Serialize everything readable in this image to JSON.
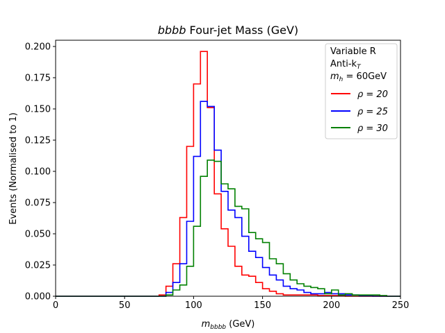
{
  "chart_data": {
    "type": "line",
    "title_prefix": "bbbb",
    "title_rest": " Four-jet Mass (GeV)",
    "xlabel_main": "m",
    "xlabel_sub": "bbbb",
    "xlabel_unit": " (GeV)",
    "ylabel": "Events (Normalised to 1)",
    "xlim": [
      0,
      250
    ],
    "ylim": [
      0,
      0.205
    ],
    "x_ticks": [
      0,
      50,
      100,
      150,
      200,
      250
    ],
    "x_tick_labels": [
      "0",
      "50",
      "100",
      "150",
      "200",
      "250"
    ],
    "y_ticks": [
      0.0,
      0.025,
      0.05,
      0.075,
      0.1,
      0.125,
      0.15,
      0.175,
      0.2
    ],
    "y_tick_labels": [
      "0.000",
      "0.025",
      "0.050",
      "0.075",
      "0.100",
      "0.125",
      "0.150",
      "0.175",
      "0.200"
    ],
    "grid": false,
    "legend_position": "top-right",
    "legend_header": {
      "line1": "Variable R",
      "line2_main": "Anti-k",
      "line2_sub": "T",
      "line3_main": "m",
      "line3_sub": "h",
      "line3_rest": " = 60GeV"
    },
    "bin_edges": [
      0,
      5,
      10,
      15,
      20,
      25,
      30,
      35,
      40,
      45,
      50,
      55,
      60,
      65,
      70,
      75,
      80,
      85,
      90,
      95,
      100,
      105,
      110,
      115,
      120,
      125,
      130,
      135,
      140,
      145,
      150,
      155,
      160,
      165,
      170,
      175,
      180,
      185,
      190,
      195,
      200,
      205,
      210,
      215,
      220,
      225,
      230,
      235,
      240,
      245,
      250
    ],
    "series": [
      {
        "name": "ρ = 20",
        "color": "#ff0000",
        "values": [
          0,
          0,
          0,
          0,
          0,
          0,
          0,
          0,
          0,
          0,
          0,
          0,
          0,
          0,
          0,
          0.001,
          0.008,
          0.026,
          0.063,
          0.12,
          0.17,
          0.196,
          0.151,
          0.082,
          0.054,
          0.04,
          0.024,
          0.017,
          0.016,
          0.011,
          0.006,
          0.004,
          0.002,
          0.001,
          0.001,
          0.001,
          0.001,
          0.001,
          0.0005,
          0.0005,
          0.0005,
          0.0005,
          0,
          0,
          0,
          0,
          0,
          0,
          0,
          0
        ]
      },
      {
        "name": "ρ = 25",
        "color": "#0000ff",
        "values": [
          0,
          0,
          0,
          0,
          0,
          0,
          0,
          0,
          0,
          0,
          0,
          0,
          0,
          0,
          0,
          0,
          0.003,
          0.011,
          0.026,
          0.06,
          0.112,
          0.156,
          0.152,
          0.117,
          0.084,
          0.069,
          0.063,
          0.048,
          0.036,
          0.031,
          0.023,
          0.017,
          0.013,
          0.008,
          0.006,
          0.005,
          0.003,
          0.002,
          0.002,
          0.003,
          0.002,
          0.002,
          0.001,
          0.001,
          0.0005,
          0.0005,
          0,
          0,
          0,
          0
        ]
      },
      {
        "name": "ρ = 30",
        "color": "#008000",
        "values": [
          0,
          0,
          0,
          0,
          0,
          0,
          0,
          0,
          0,
          0,
          0,
          0,
          0,
          0,
          0,
          0,
          0.001,
          0.005,
          0.009,
          0.024,
          0.056,
          0.096,
          0.109,
          0.108,
          0.09,
          0.086,
          0.072,
          0.07,
          0.051,
          0.046,
          0.043,
          0.03,
          0.026,
          0.018,
          0.013,
          0.01,
          0.008,
          0.007,
          0.006,
          0.002,
          0.005,
          0.001,
          0.002,
          0.001,
          0.001,
          0.001,
          0.001,
          0.0005,
          0,
          0
        ]
      }
    ]
  }
}
